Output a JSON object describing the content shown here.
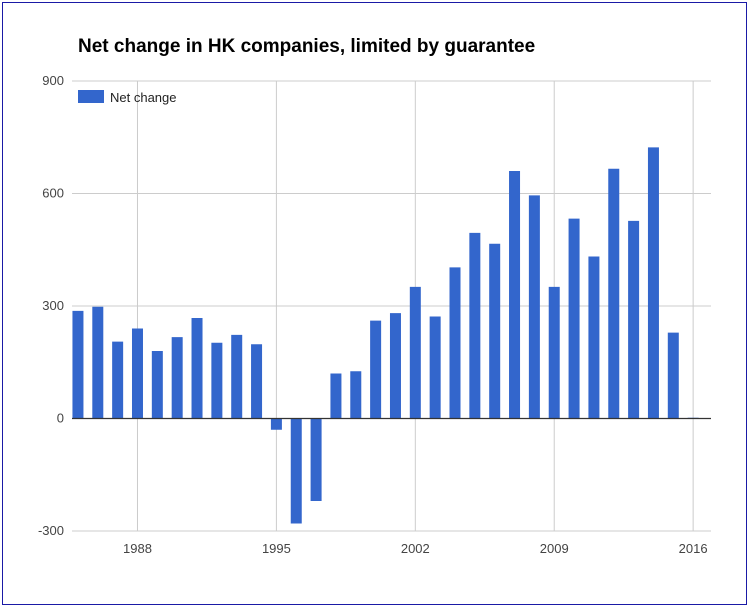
{
  "chart_data": {
    "type": "bar",
    "title": "Net change in HK companies, limited by guarantee",
    "xlabel": "",
    "ylabel": "",
    "ylim": [
      -300,
      900
    ],
    "yticks": [
      "-300",
      "0",
      "300",
      "600",
      "900"
    ],
    "xticks": [
      "1988",
      "1995",
      "2002",
      "2009",
      "2016"
    ],
    "xlim": [
      1984.7,
      2016.9
    ],
    "grid": true,
    "legend_position": "top-left",
    "colors": {
      "bar": "#3366cc",
      "grid": "#cccccc",
      "zero": "#333333"
    },
    "series": [
      {
        "name": "Net change",
        "x": [
          1985,
          1986,
          1987,
          1988,
          1989,
          1990,
          1991,
          1992,
          1993,
          1994,
          1995,
          1996,
          1997,
          1998,
          1999,
          2000,
          2001,
          2002,
          2003,
          2004,
          2005,
          2006,
          2007,
          2008,
          2009,
          2010,
          2011,
          2012,
          2013,
          2014,
          2015,
          2016
        ],
        "values": [
          287,
          298,
          205,
          240,
          180,
          217,
          268,
          202,
          223,
          198,
          -30,
          -280,
          -220,
          120,
          126,
          261,
          281,
          351,
          272,
          403,
          495,
          466,
          660,
          595,
          351,
          533,
          432,
          666,
          527,
          723,
          229,
          2
        ]
      }
    ]
  }
}
